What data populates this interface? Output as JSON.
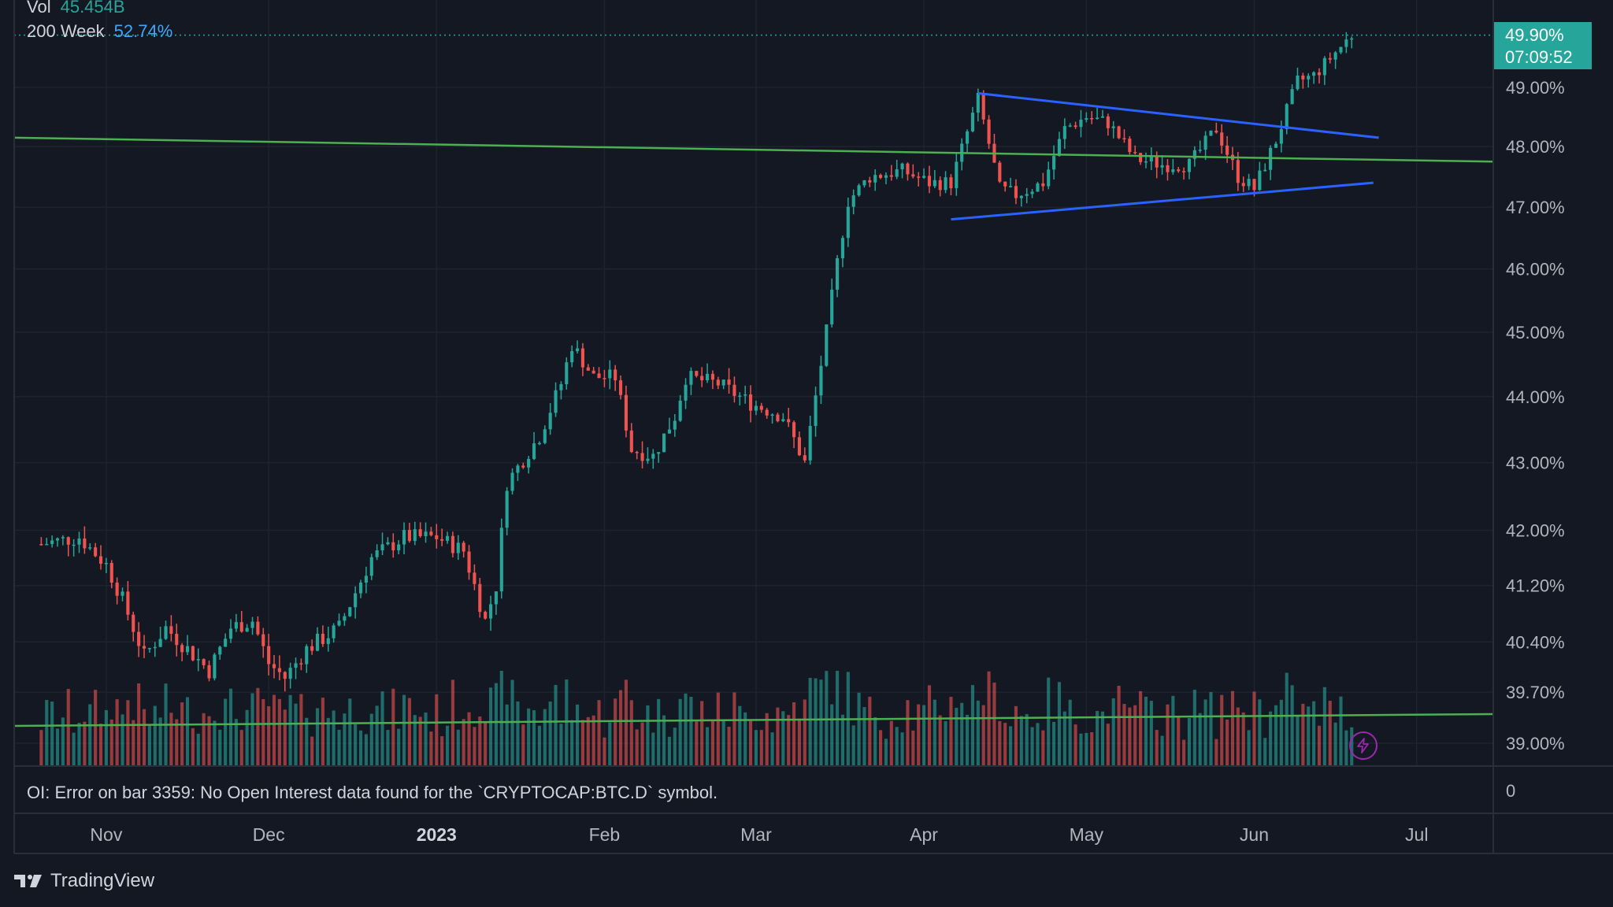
{
  "legend": {
    "vol_label": "Vol",
    "vol_value": "45.454B",
    "ma_label": "200 Week",
    "ma_value": "52.74%"
  },
  "price_tag": {
    "value": "49.90%",
    "countdown": "07:09:52"
  },
  "oi_error": "OI: Error on bar 3359: No Open Interest data found for the `CRYPTOCAP:BTC.D` symbol.",
  "brand": "TradingView",
  "price_axis": {
    "labels": [
      "49.00%",
      "48.00%",
      "47.00%",
      "46.00%",
      "45.00%",
      "44.00%",
      "43.00%",
      "42.00%",
      "41.20%",
      "40.40%",
      "39.70%",
      "39.00%"
    ],
    "volume_axis_label": "0"
  },
  "time_axis": {
    "labels": [
      "Nov",
      "Dec",
      "2023",
      "Feb",
      "Mar",
      "Apr",
      "May",
      "Jun",
      "Jul"
    ]
  },
  "colors": {
    "background": "#141823",
    "up": "#26a69a",
    "down": "#ef5350",
    "trendline": "#4caf50",
    "triangle": "#2962ff",
    "grid": "#1e2330"
  },
  "chart_data": {
    "type": "candlestick",
    "y_scale": "log",
    "candle_anchors": [
      [
        "2022-10-20",
        41.8
      ],
      [
        "2022-10-27",
        41.9
      ],
      [
        "2022-11-01",
        41.5
      ],
      [
        "2022-11-04",
        41.0
      ],
      [
        "2022-11-08",
        40.2
      ],
      [
        "2022-11-12",
        40.6
      ],
      [
        "2022-11-16",
        40.3
      ],
      [
        "2022-11-20",
        40.0
      ],
      [
        "2022-11-24",
        40.6
      ],
      [
        "2022-11-28",
        40.7
      ],
      [
        "2022-12-01",
        40.1
      ],
      [
        "2022-12-04",
        39.9
      ],
      [
        "2022-12-08",
        40.3
      ],
      [
        "2022-12-14",
        40.6
      ],
      [
        "2022-12-20",
        41.6
      ],
      [
        "2022-12-26",
        41.9
      ],
      [
        "2023-01-01",
        41.9
      ],
      [
        "2023-01-06",
        41.7
      ],
      [
        "2023-01-10",
        40.7
      ],
      [
        "2023-01-12",
        41.2
      ],
      [
        "2023-01-14",
        42.7
      ],
      [
        "2023-01-20",
        43.4
      ],
      [
        "2023-01-24",
        44.2
      ],
      [
        "2023-01-26",
        44.8
      ],
      [
        "2023-01-30",
        44.3
      ],
      [
        "2023-02-03",
        44.3
      ],
      [
        "2023-02-06",
        43.2
      ],
      [
        "2023-02-10",
        43.1
      ],
      [
        "2023-02-14",
        43.7
      ],
      [
        "2023-02-16",
        44.3
      ],
      [
        "2023-02-22",
        44.2
      ],
      [
        "2023-02-28",
        43.9
      ],
      [
        "2023-03-06",
        43.7
      ],
      [
        "2023-03-10",
        43.0
      ],
      [
        "2023-03-14",
        45.0
      ],
      [
        "2023-03-16",
        46.1
      ],
      [
        "2023-03-18",
        47.1
      ],
      [
        "2023-03-22",
        47.5
      ],
      [
        "2023-03-28",
        47.6
      ],
      [
        "2023-04-02",
        47.4
      ],
      [
        "2023-04-06",
        47.4
      ],
      [
        "2023-04-11",
        48.8
      ],
      [
        "2023-04-15",
        47.3
      ],
      [
        "2023-04-18",
        47.2
      ],
      [
        "2023-04-23",
        47.4
      ],
      [
        "2023-04-27",
        48.3
      ],
      [
        "2023-05-01",
        48.5
      ],
      [
        "2023-05-05",
        48.4
      ],
      [
        "2023-05-10",
        47.8
      ],
      [
        "2023-05-15",
        47.7
      ],
      [
        "2023-05-20",
        47.7
      ],
      [
        "2023-05-25",
        48.3
      ],
      [
        "2023-05-29",
        47.5
      ],
      [
        "2023-06-01",
        47.3
      ],
      [
        "2023-06-05",
        48.1
      ],
      [
        "2023-06-09",
        49.1
      ],
      [
        "2023-06-12",
        49.2
      ],
      [
        "2023-06-16",
        49.6
      ],
      [
        "2023-06-19",
        49.9
      ]
    ],
    "trendline_green": [
      [
        "2022-10-15",
        48.15
      ],
      [
        "2023-07-15",
        47.75
      ]
    ],
    "triangle_upper": [
      [
        "2023-04-11",
        48.9
      ],
      [
        "2023-06-24",
        48.15
      ]
    ],
    "triangle_lower": [
      [
        "2023-04-06",
        46.8
      ],
      [
        "2023-06-23",
        47.4
      ]
    ],
    "last_price": 49.9,
    "ylim": [
      38.8,
      50.0
    ],
    "xlim": [
      "2022-10-15",
      "2023-07-15"
    ]
  }
}
